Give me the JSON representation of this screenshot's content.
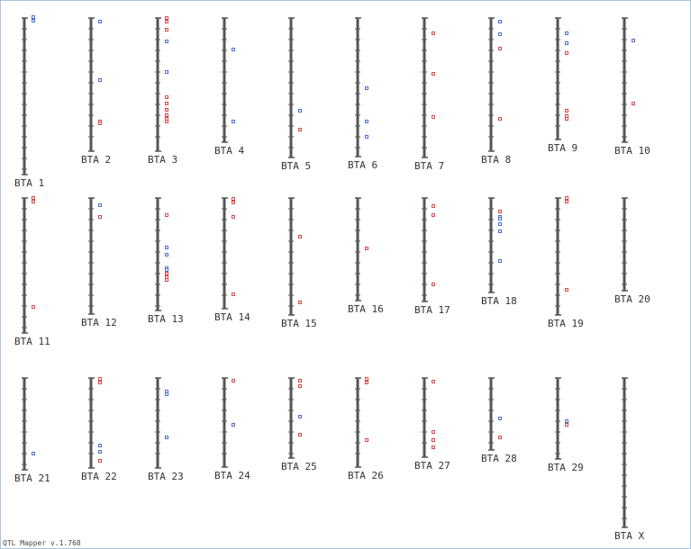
{
  "chromosomes": [
    {
      "label": "BTA 1"
    },
    {
      "label": "BTA 2"
    },
    {
      "label": "BTA 3"
    },
    {
      "label": "BTA 4"
    },
    {
      "label": "BTA 5"
    },
    {
      "label": "BTA 6"
    },
    {
      "label": "BTA 7"
    },
    {
      "label": "BTA 8"
    },
    {
      "label": "BTA 9"
    },
    {
      "label": "BTA 10"
    },
    {
      "label": "BTA 11"
    },
    {
      "label": "BTA 12"
    },
    {
      "label": "BTA 13"
    },
    {
      "label": "BTA 14"
    },
    {
      "label": "BTA 15"
    },
    {
      "label": "BTA 16"
    },
    {
      "label": "BTA 17"
    },
    {
      "label": "BTA 18"
    },
    {
      "label": "BTA 19"
    },
    {
      "label": "BTA 20"
    },
    {
      "label": "BTA 21"
    },
    {
      "label": "BTA 22"
    },
    {
      "label": "BTA 23"
    },
    {
      "label": "BTA 24"
    },
    {
      "label": "BTA 25"
    },
    {
      "label": "BTA 26"
    },
    {
      "label": "BTA 27"
    },
    {
      "label": "BTA 28"
    },
    {
      "label": "BTA 29"
    },
    {
      "label": "BTA X"
    }
  ],
  "footer": "QTL Mapper v.1.768"
}
